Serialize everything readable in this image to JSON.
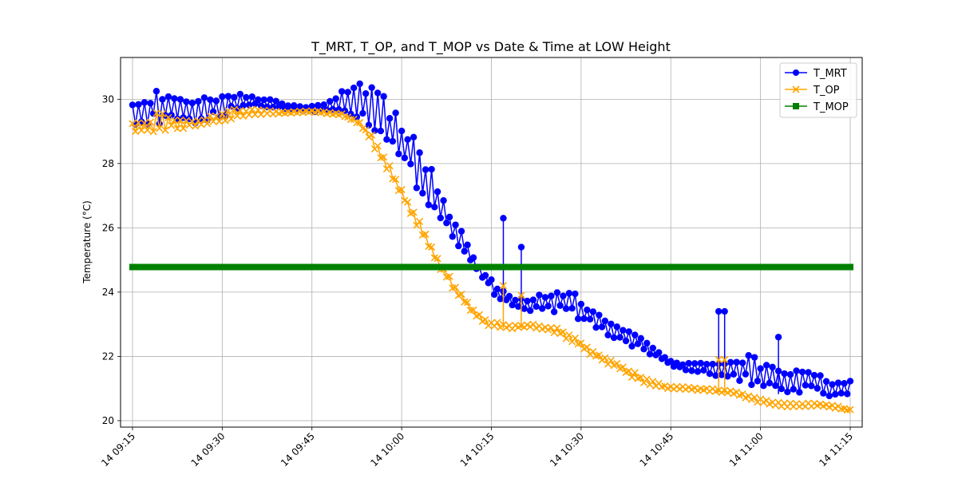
{
  "chart_data": {
    "type": "line",
    "title": "T_MRT, T_OP, and T_MOP vs Date & Time at LOW Height",
    "xlabel": "",
    "ylabel": "Temperature (°C)",
    "x_range": [
      "14 09:13",
      "14 11:17"
    ],
    "ylim": [
      19.8,
      31.3
    ],
    "grid": true,
    "legend_position": "top-right",
    "x_ticks": [
      "14 09:15",
      "14 09:30",
      "14 09:45",
      "14 10:00",
      "14 10:15",
      "14 10:30",
      "14 10:45",
      "14 11:00",
      "14 11:15"
    ],
    "y_ticks": [
      20,
      22,
      24,
      26,
      28,
      30
    ],
    "series": [
      {
        "name": "T_MRT",
        "color": "#0000ff",
        "marker": "circle",
        "upper": [
          [
            "14 09:15",
            30.0
          ],
          [
            "14 09:17",
            29.95
          ],
          [
            "14 09:18",
            30.05
          ],
          [
            "14 09:19",
            30.7
          ],
          [
            "14 09:20",
            30.45
          ],
          [
            "14 09:21",
            30.25
          ],
          [
            "14 09:23",
            30.1
          ],
          [
            "14 09:24",
            30.1
          ],
          [
            "14 09:25",
            30.0
          ],
          [
            "14 09:27",
            30.05
          ],
          [
            "14 09:29",
            30.15
          ],
          [
            "14 09:31",
            30.25
          ],
          [
            "14 09:33",
            30.35
          ],
          [
            "14 09:35",
            30.1
          ],
          [
            "14 09:38",
            30.0
          ],
          [
            "14 09:41",
            29.85
          ],
          [
            "14 09:44",
            29.75
          ],
          [
            "14 09:47",
            29.85
          ],
          [
            "14 09:49",
            30.1
          ],
          [
            "14 09:51",
            30.4
          ],
          [
            "14 09:52",
            30.65
          ],
          [
            "14 09:54",
            30.35
          ],
          [
            "14 09:55",
            30.5
          ],
          [
            "14 09:57",
            30.3
          ],
          [
            "14 09:58",
            29.9
          ],
          [
            "14 10:00",
            29.4
          ],
          [
            "14 10:02",
            28.9
          ],
          [
            "14 10:04",
            28.3
          ],
          [
            "14 10:06",
            27.5
          ],
          [
            "14 10:08",
            26.6
          ],
          [
            "14 10:10",
            25.9
          ],
          [
            "14 10:12",
            25.2
          ],
          [
            "14 10:14",
            24.6
          ],
          [
            "14 10:16",
            24.2
          ],
          [
            "14 10:18",
            23.9
          ],
          [
            "14 10:20",
            23.8
          ],
          [
            "14 10:22",
            23.9
          ],
          [
            "14 10:24",
            24.0
          ],
          [
            "14 10:26",
            24.2
          ],
          [
            "14 10:28",
            24.1
          ],
          [
            "14 10:30",
            23.8
          ],
          [
            "14 10:32",
            23.5
          ],
          [
            "14 10:34",
            23.2
          ],
          [
            "14 10:36",
            23.0
          ],
          [
            "14 10:38",
            22.9
          ],
          [
            "14 10:40",
            22.7
          ],
          [
            "14 10:42",
            22.3
          ],
          [
            "14 10:44",
            22.0
          ],
          [
            "14 10:46",
            21.8
          ],
          [
            "14 10:48",
            21.8
          ],
          [
            "14 10:50",
            21.8
          ],
          [
            "14 10:52",
            21.9
          ],
          [
            "14 10:54",
            21.8
          ],
          [
            "14 10:56",
            22.0
          ],
          [
            "14 10:58",
            22.2
          ],
          [
            "14 11:00",
            21.9
          ],
          [
            "14 11:02",
            21.7
          ],
          [
            "14 11:04",
            21.6
          ],
          [
            "14 11:06",
            21.7
          ],
          [
            "14 11:08",
            21.6
          ],
          [
            "14 11:10",
            21.5
          ],
          [
            "14 11:12",
            21.2
          ],
          [
            "14 11:14",
            21.3
          ],
          [
            "14 11:15",
            21.25
          ]
        ],
        "lower": [
          [
            "14 09:15",
            29.1
          ],
          [
            "14 09:20",
            29.15
          ],
          [
            "14 09:25",
            29.2
          ],
          [
            "14 09:30",
            29.4
          ],
          [
            "14 09:35",
            29.8
          ],
          [
            "14 09:40",
            29.7
          ],
          [
            "14 09:45",
            29.6
          ],
          [
            "14 09:50",
            29.65
          ],
          [
            "14 09:55",
            29.1
          ],
          [
            "14 10:00",
            27.9
          ],
          [
            "14 10:04",
            26.8
          ],
          [
            "14 10:08",
            25.8
          ],
          [
            "14 10:12",
            24.8
          ],
          [
            "14 10:16",
            23.8
          ],
          [
            "14 10:20",
            23.4
          ],
          [
            "14 10:24",
            23.4
          ],
          [
            "14 10:28",
            23.3
          ],
          [
            "14 10:32",
            22.9
          ],
          [
            "14 10:36",
            22.5
          ],
          [
            "14 10:40",
            22.2
          ],
          [
            "14 10:44",
            21.8
          ],
          [
            "14 10:48",
            21.5
          ],
          [
            "14 10:52",
            21.4
          ],
          [
            "14 10:56",
            21.2
          ],
          [
            "14 11:00",
            20.9
          ],
          [
            "14 11:04",
            20.8
          ],
          [
            "14 11:08",
            20.9
          ],
          [
            "14 11:12",
            20.7
          ],
          [
            "14 11:15",
            20.75
          ]
        ],
        "spikes": [
          [
            "14 10:17",
            26.3
          ],
          [
            "14 10:20",
            25.4
          ],
          [
            "14 10:53",
            23.4
          ],
          [
            "14 10:54",
            23.4
          ],
          [
            "14 11:03",
            22.6
          ]
        ]
      },
      {
        "name": "T_OP",
        "color": "#ffa500",
        "marker": "x",
        "upper": [
          [
            "14 09:15",
            29.3
          ],
          [
            "14 09:18",
            29.35
          ],
          [
            "14 09:19",
            29.65
          ],
          [
            "14 09:20",
            29.55
          ],
          [
            "14 09:23",
            29.4
          ],
          [
            "14 09:26",
            29.4
          ],
          [
            "14 09:29",
            29.55
          ],
          [
            "14 09:32",
            29.7
          ],
          [
            "14 09:35",
            29.7
          ],
          [
            "14 09:40",
            29.6
          ],
          [
            "14 09:45",
            29.65
          ],
          [
            "14 09:50",
            29.55
          ],
          [
            "14 09:53",
            29.3
          ],
          [
            "14 09:55",
            28.9
          ],
          [
            "14 09:57",
            28.3
          ],
          [
            "14 09:59",
            27.6
          ],
          [
            "14 10:01",
            26.9
          ],
          [
            "14 10:03",
            26.2
          ],
          [
            "14 10:05",
            25.5
          ],
          [
            "14 10:07",
            24.8
          ],
          [
            "14 10:09",
            24.2
          ],
          [
            "14 10:11",
            23.7
          ],
          [
            "14 10:13",
            23.3
          ],
          [
            "14 10:15",
            23.1
          ],
          [
            "14 10:18",
            23.0
          ],
          [
            "14 10:22",
            23.0
          ],
          [
            "14 10:26",
            22.9
          ],
          [
            "14 10:29",
            22.6
          ],
          [
            "14 10:32",
            22.2
          ],
          [
            "14 10:35",
            21.9
          ],
          [
            "14 10:38",
            21.6
          ],
          [
            "14 10:41",
            21.3
          ],
          [
            "14 10:44",
            21.1
          ],
          [
            "14 10:48",
            21.05
          ],
          [
            "14 10:52",
            21.0
          ],
          [
            "14 10:56",
            20.9
          ],
          [
            "14 10:59",
            20.75
          ],
          [
            "14 11:02",
            20.6
          ],
          [
            "14 11:06",
            20.55
          ],
          [
            "14 11:10",
            20.55
          ],
          [
            "14 11:13",
            20.45
          ],
          [
            "14 11:15",
            20.35
          ]
        ],
        "lower": [
          [
            "14 09:15",
            28.9
          ],
          [
            "14 09:20",
            29.0
          ],
          [
            "14 09:25",
            29.1
          ],
          [
            "14 09:30",
            29.3
          ],
          [
            "14 09:35",
            29.5
          ],
          [
            "14 09:40",
            29.55
          ],
          [
            "14 09:45",
            29.6
          ],
          [
            "14 09:50",
            29.5
          ],
          [
            "14 09:53",
            29.2
          ],
          [
            "14 09:55",
            28.6
          ],
          [
            "14 09:57",
            28.0
          ],
          [
            "14 09:59",
            27.3
          ],
          [
            "14 10:01",
            26.6
          ],
          [
            "14 10:03",
            25.9
          ],
          [
            "14 10:05",
            25.2
          ],
          [
            "14 10:07",
            24.5
          ],
          [
            "14 10:09",
            24.0
          ],
          [
            "14 10:11",
            23.5
          ],
          [
            "14 10:13",
            23.1
          ],
          [
            "14 10:15",
            22.9
          ],
          [
            "14 10:18",
            22.85
          ],
          [
            "14 10:22",
            22.9
          ],
          [
            "14 10:26",
            22.7
          ],
          [
            "14 10:29",
            22.4
          ],
          [
            "14 10:32",
            22.0
          ],
          [
            "14 10:35",
            21.7
          ],
          [
            "14 10:38",
            21.4
          ],
          [
            "14 10:41",
            21.1
          ],
          [
            "14 10:44",
            21.0
          ],
          [
            "14 10:48",
            20.95
          ],
          [
            "14 10:52",
            20.9
          ],
          [
            "14 10:56",
            20.8
          ],
          [
            "14 10:59",
            20.6
          ],
          [
            "14 11:02",
            20.45
          ],
          [
            "14 11:06",
            20.4
          ],
          [
            "14 11:10",
            20.45
          ],
          [
            "14 11:13",
            20.35
          ],
          [
            "14 11:15",
            20.3
          ]
        ],
        "spikes": [
          [
            "14 10:17",
            24.2
          ],
          [
            "14 10:20",
            23.9
          ],
          [
            "14 10:53",
            21.9
          ],
          [
            "14 10:54",
            21.9
          ]
        ]
      },
      {
        "name": "T_MOP",
        "color": "#008000",
        "marker": "square",
        "constant_value": 24.78,
        "x_start": "14 09:15",
        "x_end": "14 11:15"
      }
    ]
  }
}
